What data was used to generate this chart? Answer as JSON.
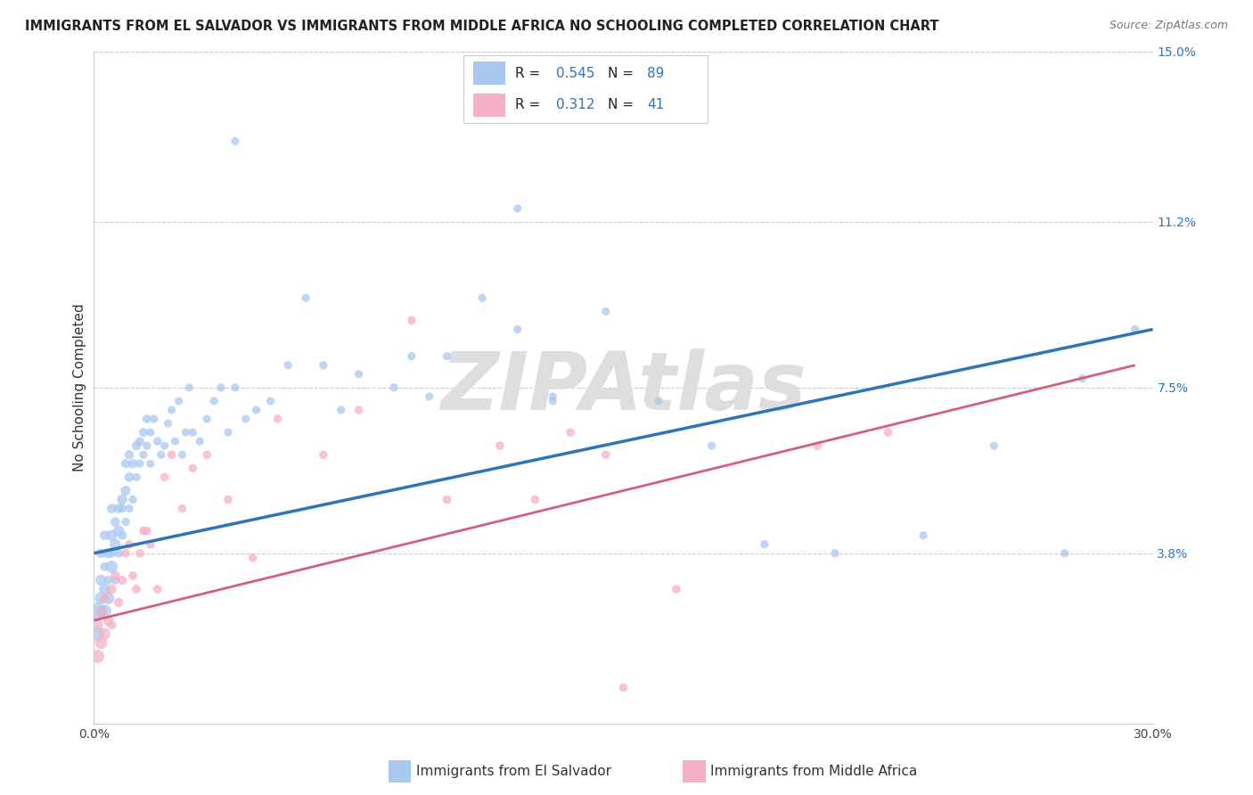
{
  "title": "IMMIGRANTS FROM EL SALVADOR VS IMMIGRANTS FROM MIDDLE AFRICA NO SCHOOLING COMPLETED CORRELATION CHART",
  "source": "Source: ZipAtlas.com",
  "ylabel": "No Schooling Completed",
  "watermark": "ZIPAtlas",
  "xlim": [
    0.0,
    0.3
  ],
  "ylim": [
    0.0,
    0.15
  ],
  "xticks": [
    0.0,
    0.05,
    0.1,
    0.15,
    0.2,
    0.25,
    0.3
  ],
  "xticklabels": [
    "0.0%",
    "",
    "",
    "",
    "",
    "",
    "30.0%"
  ],
  "ytick_positions": [
    0.038,
    0.075,
    0.112,
    0.15
  ],
  "ytick_labels": [
    "3.8%",
    "7.5%",
    "11.2%",
    "15.0%"
  ],
  "blue_R": "0.545",
  "blue_N": "89",
  "pink_R": "0.312",
  "pink_N": "41",
  "blue_color": "#A8C8F0",
  "pink_color": "#F5B0C5",
  "blue_line_color": "#2E75B6",
  "pink_line_color": "#D4607A",
  "legend_text_color": "#2E75B6",
  "blue_line_start_x": 0.0,
  "blue_line_start_y": 0.038,
  "blue_line_end_x": 0.3,
  "blue_line_end_y": 0.088,
  "pink_line_start_x": 0.0,
  "pink_line_start_y": 0.023,
  "pink_line_end_x": 0.295,
  "pink_line_end_y": 0.08,
  "grid_color": "#CCCCCC",
  "background_color": "#FFFFFF",
  "watermark_color": "#DEDEDE",
  "title_fontsize": 10.5,
  "axis_label_fontsize": 11,
  "tick_fontsize": 10,
  "source_fontsize": 9,
  "blue_scatter_x": [
    0.001,
    0.001,
    0.002,
    0.002,
    0.002,
    0.003,
    0.003,
    0.003,
    0.003,
    0.004,
    0.004,
    0.004,
    0.005,
    0.005,
    0.005,
    0.005,
    0.006,
    0.006,
    0.006,
    0.007,
    0.007,
    0.007,
    0.008,
    0.008,
    0.008,
    0.009,
    0.009,
    0.009,
    0.01,
    0.01,
    0.01,
    0.011,
    0.011,
    0.012,
    0.012,
    0.013,
    0.013,
    0.014,
    0.014,
    0.015,
    0.015,
    0.016,
    0.016,
    0.017,
    0.018,
    0.019,
    0.02,
    0.021,
    0.022,
    0.023,
    0.024,
    0.025,
    0.026,
    0.027,
    0.028,
    0.03,
    0.032,
    0.034,
    0.036,
    0.038,
    0.04,
    0.043,
    0.046,
    0.05,
    0.055,
    0.06,
    0.065,
    0.07,
    0.075,
    0.085,
    0.09,
    0.095,
    0.1,
    0.11,
    0.12,
    0.13,
    0.145,
    0.16,
    0.175,
    0.19,
    0.21,
    0.235,
    0.255,
    0.275,
    0.04,
    0.12,
    0.13,
    0.28,
    0.295
  ],
  "blue_scatter_y": [
    0.025,
    0.02,
    0.028,
    0.032,
    0.038,
    0.025,
    0.03,
    0.042,
    0.035,
    0.028,
    0.038,
    0.032,
    0.035,
    0.042,
    0.048,
    0.038,
    0.04,
    0.045,
    0.032,
    0.043,
    0.048,
    0.038,
    0.05,
    0.042,
    0.048,
    0.052,
    0.058,
    0.045,
    0.055,
    0.06,
    0.048,
    0.058,
    0.05,
    0.062,
    0.055,
    0.063,
    0.058,
    0.065,
    0.06,
    0.068,
    0.062,
    0.065,
    0.058,
    0.068,
    0.063,
    0.06,
    0.062,
    0.067,
    0.07,
    0.063,
    0.072,
    0.06,
    0.065,
    0.075,
    0.065,
    0.063,
    0.068,
    0.072,
    0.075,
    0.065,
    0.075,
    0.068,
    0.07,
    0.072,
    0.08,
    0.095,
    0.08,
    0.07,
    0.078,
    0.075,
    0.082,
    0.073,
    0.082,
    0.095,
    0.088,
    0.072,
    0.092,
    0.072,
    0.062,
    0.04,
    0.038,
    0.042,
    0.062,
    0.038,
    0.13,
    0.115,
    0.073,
    0.077,
    0.088
  ],
  "blue_scatter_sizes": [
    200,
    120,
    100,
    80,
    60,
    120,
    80,
    60,
    50,
    100,
    70,
    50,
    100,
    80,
    60,
    50,
    80,
    60,
    50,
    80,
    60,
    50,
    70,
    55,
    45,
    65,
    55,
    45,
    60,
    55,
    45,
    55,
    45,
    55,
    45,
    50,
    45,
    50,
    45,
    50,
    45,
    45,
    42,
    45,
    45,
    45,
    44,
    44,
    44,
    44,
    44,
    44,
    44,
    44,
    44,
    44,
    44,
    44,
    44,
    44,
    44,
    44,
    44,
    44,
    44,
    44,
    44,
    44,
    44,
    44,
    44,
    44,
    44,
    44,
    44,
    44,
    44,
    44,
    44,
    44,
    44,
    44,
    44,
    44,
    44,
    44,
    44,
    44,
    44
  ],
  "pink_scatter_x": [
    0.001,
    0.001,
    0.002,
    0.002,
    0.003,
    0.003,
    0.004,
    0.005,
    0.005,
    0.006,
    0.007,
    0.008,
    0.009,
    0.01,
    0.011,
    0.012,
    0.013,
    0.014,
    0.015,
    0.016,
    0.018,
    0.02,
    0.022,
    0.025,
    0.028,
    0.032,
    0.038,
    0.045,
    0.052,
    0.065,
    0.075,
    0.09,
    0.1,
    0.115,
    0.125,
    0.135,
    0.15,
    0.165,
    0.205,
    0.225,
    0.145
  ],
  "pink_scatter_y": [
    0.015,
    0.022,
    0.018,
    0.025,
    0.02,
    0.028,
    0.023,
    0.03,
    0.022,
    0.033,
    0.027,
    0.032,
    0.038,
    0.04,
    0.033,
    0.03,
    0.038,
    0.043,
    0.043,
    0.04,
    0.03,
    0.055,
    0.06,
    0.048,
    0.057,
    0.06,
    0.05,
    0.037,
    0.068,
    0.06,
    0.07,
    0.09,
    0.05,
    0.062,
    0.05,
    0.065,
    0.008,
    0.03,
    0.062,
    0.065,
    0.06
  ],
  "pink_scatter_sizes": [
    120,
    80,
    100,
    70,
    90,
    60,
    70,
    60,
    55,
    60,
    55,
    55,
    50,
    50,
    50,
    50,
    48,
    48,
    48,
    48,
    48,
    48,
    48,
    48,
    48,
    48,
    48,
    48,
    48,
    48,
    48,
    48,
    48,
    48,
    48,
    48,
    48,
    48,
    48,
    48,
    48
  ]
}
